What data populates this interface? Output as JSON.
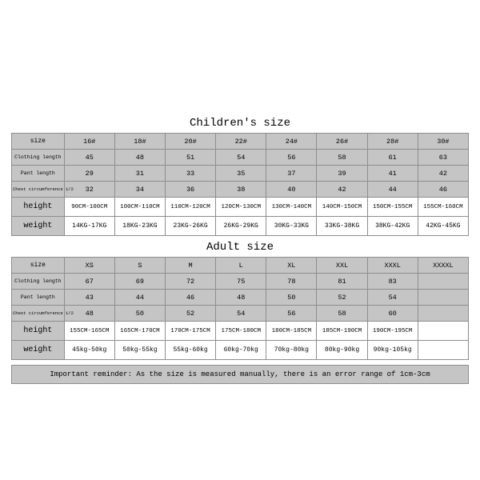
{
  "children_title": "Children's size",
  "adult_title": "Adult size",
  "row_labels": {
    "size": "size",
    "clothing_length": "Clothing length",
    "pant_length": "Pant length",
    "chest": "Chest circumference 1/2",
    "height": "height",
    "weight": "weight"
  },
  "children": {
    "sizes": [
      "16#",
      "18#",
      "20#",
      "22#",
      "24#",
      "26#",
      "28#",
      "30#"
    ],
    "clothing_length": [
      "45",
      "48",
      "51",
      "54",
      "56",
      "58",
      "61",
      "63"
    ],
    "pant_length": [
      "29",
      "31",
      "33",
      "35",
      "37",
      "39",
      "41",
      "42"
    ],
    "chest": [
      "32",
      "34",
      "36",
      "38",
      "40",
      "42",
      "44",
      "46"
    ],
    "height": [
      "90CM-100CM",
      "100CM-110CM",
      "110CM-120CM",
      "120CM-130CM",
      "130CM-140CM",
      "140CM-150CM",
      "150CM-155CM",
      "155CM-160CM"
    ],
    "weight": [
      "14KG-17KG",
      "18KG-23KG",
      "23KG-26KG",
      "26KG-29KG",
      "30KG-33KG",
      "33KG-38KG",
      "38KG-42KG",
      "42KG-45KG"
    ]
  },
  "adult": {
    "sizes": [
      "XS",
      "S",
      "M",
      "L",
      "XL",
      "XXL",
      "XXXL",
      "XXXXL"
    ],
    "clothing_length": [
      "67",
      "69",
      "72",
      "75",
      "78",
      "81",
      "83",
      ""
    ],
    "pant_length": [
      "43",
      "44",
      "46",
      "48",
      "50",
      "52",
      "54",
      ""
    ],
    "chest": [
      "48",
      "50",
      "52",
      "54",
      "56",
      "58",
      "60",
      ""
    ],
    "height": [
      "155CM-165CM",
      "165CM-170CM",
      "170CM-175CM",
      "175CM-180CM",
      "180CM-185CM",
      "185CM-190CM",
      "190CM-195CM",
      ""
    ],
    "weight": [
      "45kg-50kg",
      "50kg-55kg",
      "55kg-60kg",
      "60kg-70kg",
      "70kg-80kg",
      "80kg-90kg",
      "90kg-105kg",
      ""
    ]
  },
  "reminder": "Important reminder: As the size is measured manually, there is an error range of 1cm-3cm",
  "style": {
    "header_bg": "#c5c5c5",
    "row_bg": "#ffffff",
    "border_color": "#8d8d8d",
    "text_color": "#000000",
    "title_fontsize": 14,
    "cell_fontsize": 8.5,
    "tall_cell_fontsize": 10,
    "font_family": "Courier New"
  }
}
